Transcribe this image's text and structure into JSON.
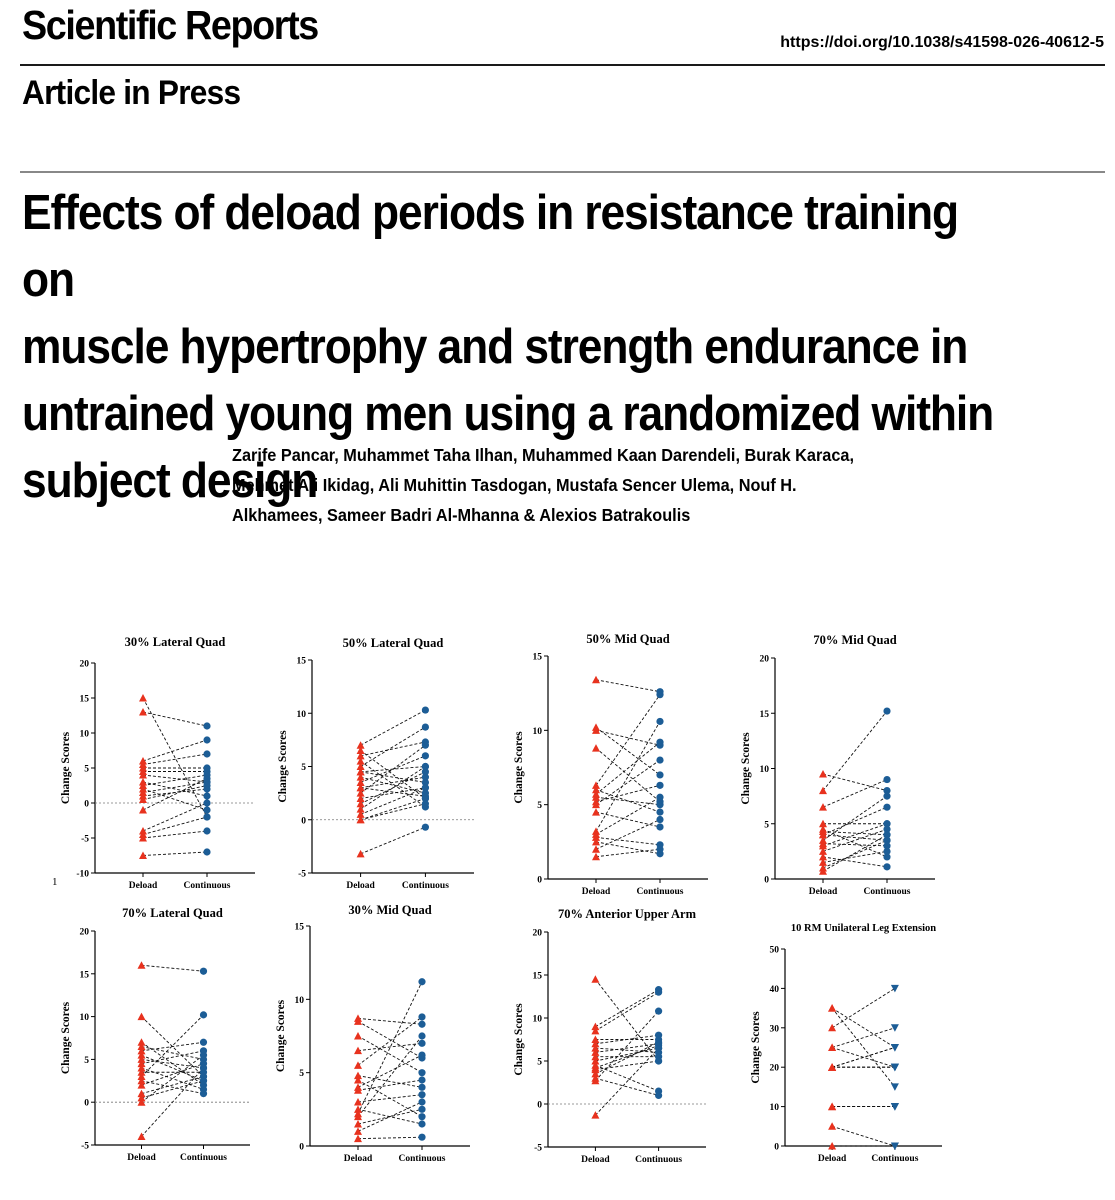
{
  "header": {
    "journal": "Scientific Reports",
    "doi": "https://doi.org/10.1038/s41598-026-40612-5",
    "status": "Article in Press"
  },
  "article": {
    "title_lines": [
      "Effects of deload periods in resistance training on",
      "muscle hypertrophy and strength endurance in",
      "untrained young men using a randomized within",
      "subject design"
    ],
    "author_lines": [
      "Zarife Pancar, Muhammet Taha Ilhan, Muhammed Kaan Darendeli, Burak Karaca,",
      "Mehmet Ali Ikidag, Ali Muhittin Tasdogan, Mustafa Sencer Ulema, Nouf H.",
      "Alkhamees, Sameer Badri Al-Mhanna & Alexios Batrakoulis"
    ]
  },
  "page_mark": "1",
  "colors": {
    "deload": "#e8321e",
    "continuous": "#1c5d96",
    "axis": "#000000"
  },
  "chart_data": [
    {
      "type": "scatter",
      "title": "30% Lateral Quad",
      "ylabel": "Change Scores",
      "categories": [
        "Deload",
        "Continuous"
      ],
      "ylim": [
        -10,
        20
      ],
      "yticks": [
        -10,
        -5,
        0,
        5,
        10,
        15,
        20
      ],
      "deload_marker": "triangle",
      "continuous_marker": "circle",
      "pairs": [
        [
          15,
          -2
        ],
        [
          13,
          11
        ],
        [
          6,
          9
        ],
        [
          5.5,
          7
        ],
        [
          5,
          5
        ],
        [
          4.5,
          4.5
        ],
        [
          4,
          3
        ],
        [
          3,
          1
        ],
        [
          2.5,
          4
        ],
        [
          2,
          -1
        ],
        [
          1.5,
          3
        ],
        [
          1,
          2
        ],
        [
          0.5,
          2.5
        ],
        [
          -1,
          3.5
        ],
        [
          -4,
          0
        ],
        [
          -4.5,
          -2
        ],
        [
          -5,
          -4
        ],
        [
          -7.5,
          -7
        ]
      ]
    },
    {
      "type": "scatter",
      "title": "50% Lateral Quad",
      "ylabel": "Change Scores",
      "categories": [
        "Deload",
        "Continuous"
      ],
      "ylim": [
        -5,
        15
      ],
      "yticks": [
        -5,
        0,
        5,
        10,
        15
      ],
      "deload_marker": "triangle",
      "continuous_marker": "circle",
      "pairs": [
        [
          7,
          10.3
        ],
        [
          6.5,
          2
        ],
        [
          6,
          7.3
        ],
        [
          5.5,
          1.2
        ],
        [
          5,
          8.7
        ],
        [
          4.5,
          3.5
        ],
        [
          4.5,
          5
        ],
        [
          4,
          2.5
        ],
        [
          3.5,
          6
        ],
        [
          3,
          4
        ],
        [
          3,
          2.2
        ],
        [
          2.5,
          7
        ],
        [
          2,
          3
        ],
        [
          1.5,
          4.5
        ],
        [
          1,
          5
        ],
        [
          0.5,
          3
        ],
        [
          0,
          2
        ],
        [
          0,
          1.5
        ],
        [
          -3.2,
          -0.7
        ]
      ]
    },
    {
      "type": "scatter",
      "title": "50% Mid Quad",
      "ylabel": "Change Scores",
      "categories": [
        "Deload",
        "Continuous"
      ],
      "ylim": [
        0,
        15
      ],
      "yticks": [
        0,
        5,
        10,
        15
      ],
      "deload_marker": "triangle",
      "continuous_marker": "circle",
      "pairs": [
        [
          13.4,
          12.6
        ],
        [
          10.2,
          7
        ],
        [
          10,
          9
        ],
        [
          8.8,
          5.2
        ],
        [
          6.3,
          12.4
        ],
        [
          6,
          4.5
        ],
        [
          5.7,
          9.2
        ],
        [
          5.5,
          5
        ],
        [
          5.2,
          6.3
        ],
        [
          5,
          8
        ],
        [
          4.5,
          3.5
        ],
        [
          3.2,
          10.6
        ],
        [
          3,
          5.5
        ],
        [
          2.8,
          2.3
        ],
        [
          2.5,
          1.7
        ],
        [
          2,
          4
        ],
        [
          1.5,
          2
        ]
      ]
    },
    {
      "type": "scatter",
      "title": "70% Mid Quad",
      "ylabel": "Change Scores",
      "categories": [
        "Deload",
        "Continuous"
      ],
      "ylim": [
        0,
        20
      ],
      "yticks": [
        0,
        5,
        10,
        15,
        20
      ],
      "deload_marker": "triangle",
      "continuous_marker": "circle",
      "pairs": [
        [
          9.5,
          8
        ],
        [
          8,
          15.2
        ],
        [
          6.5,
          9
        ],
        [
          5,
          5
        ],
        [
          4.5,
          2
        ],
        [
          4.3,
          4
        ],
        [
          4,
          3.5
        ],
        [
          4,
          6.5
        ],
        [
          3.5,
          7.5
        ],
        [
          3.2,
          3
        ],
        [
          3,
          5
        ],
        [
          2.5,
          4.5
        ],
        [
          2,
          1.1
        ],
        [
          1.5,
          2.5
        ],
        [
          1,
          3.5
        ],
        [
          0.7,
          4
        ]
      ]
    },
    {
      "type": "scatter",
      "title": "70% Lateral Quad",
      "ylabel": "Change Scores",
      "categories": [
        "Deload",
        "Continuous"
      ],
      "ylim": [
        -5,
        20
      ],
      "yticks": [
        -5,
        0,
        5,
        10,
        15,
        20
      ],
      "deload_marker": "triangle",
      "continuous_marker": "circle",
      "pairs": [
        [
          16,
          15.3
        ],
        [
          10,
          3
        ],
        [
          7,
          2
        ],
        [
          6.5,
          5
        ],
        [
          6,
          7
        ],
        [
          5.5,
          2.5
        ],
        [
          5,
          4
        ],
        [
          4.5,
          6
        ],
        [
          4,
          1.5
        ],
        [
          3.5,
          3.5
        ],
        [
          3,
          10.2
        ],
        [
          2.5,
          1
        ],
        [
          2,
          4.5
        ],
        [
          1,
          3
        ],
        [
          0.5,
          2.5
        ],
        [
          0,
          5.5
        ],
        [
          -4,
          4
        ]
      ]
    },
    {
      "type": "scatter",
      "title": "30% Mid Quad",
      "ylabel": "Change Scores",
      "categories": [
        "Deload",
        "Continuous"
      ],
      "ylim": [
        0,
        15
      ],
      "yticks": [
        0,
        5,
        10,
        15
      ],
      "deload_marker": "triangle",
      "continuous_marker": "circle",
      "pairs": [
        [
          8.7,
          8.3
        ],
        [
          8.5,
          6
        ],
        [
          7.5,
          5
        ],
        [
          6.5,
          7
        ],
        [
          5.5,
          8.8
        ],
        [
          4.8,
          4
        ],
        [
          4.5,
          2
        ],
        [
          4,
          6.2
        ],
        [
          3.8,
          4.5
        ],
        [
          3,
          3.5
        ],
        [
          2.5,
          1.5
        ],
        [
          2.2,
          11.2
        ],
        [
          2,
          7.5
        ],
        [
          1.5,
          2.5
        ],
        [
          1,
          3
        ],
        [
          0.5,
          0.6
        ]
      ]
    },
    {
      "type": "scatter",
      "title": "70% Anterior Upper Arm",
      "ylabel": "Change Scores",
      "categories": [
        "Deload",
        "Continuous"
      ],
      "ylim": [
        -5,
        20
      ],
      "yticks": [
        -5,
        0,
        5,
        10,
        15,
        20
      ],
      "deload_marker": "triangle",
      "continuous_marker": "circle",
      "pairs": [
        [
          14.5,
          5
        ],
        [
          9,
          13.3
        ],
        [
          8.5,
          13
        ],
        [
          7.5,
          7.5
        ],
        [
          7,
          8
        ],
        [
          6.5,
          6
        ],
        [
          6,
          7
        ],
        [
          5.5,
          5.5
        ],
        [
          5,
          6.5
        ],
        [
          4.5,
          1.5
        ],
        [
          4.2,
          6.8
        ],
        [
          4,
          5
        ],
        [
          3.5,
          7.2
        ],
        [
          3,
          1
        ],
        [
          2.7,
          10.8
        ],
        [
          -1.3,
          6.5
        ]
      ]
    },
    {
      "type": "scatter",
      "title": "10 RM Unilateral Leg Extension",
      "ylabel": "Change Scores",
      "categories": [
        "Deload",
        "Continuous"
      ],
      "ylim": [
        0,
        50
      ],
      "yticks": [
        0,
        10,
        20,
        30,
        40,
        50
      ],
      "deload_marker": "triangle",
      "continuous_marker": "triangle-down",
      "pairs": [
        [
          35,
          25
        ],
        [
          35,
          15
        ],
        [
          30,
          40
        ],
        [
          25,
          30
        ],
        [
          25,
          20
        ],
        [
          20,
          25
        ],
        [
          20,
          20
        ],
        [
          20,
          20
        ],
        [
          20,
          20
        ],
        [
          20,
          25
        ],
        [
          10,
          10
        ],
        [
          10,
          10
        ],
        [
          10,
          10
        ],
        [
          5,
          0
        ],
        [
          0,
          0
        ]
      ]
    }
  ]
}
